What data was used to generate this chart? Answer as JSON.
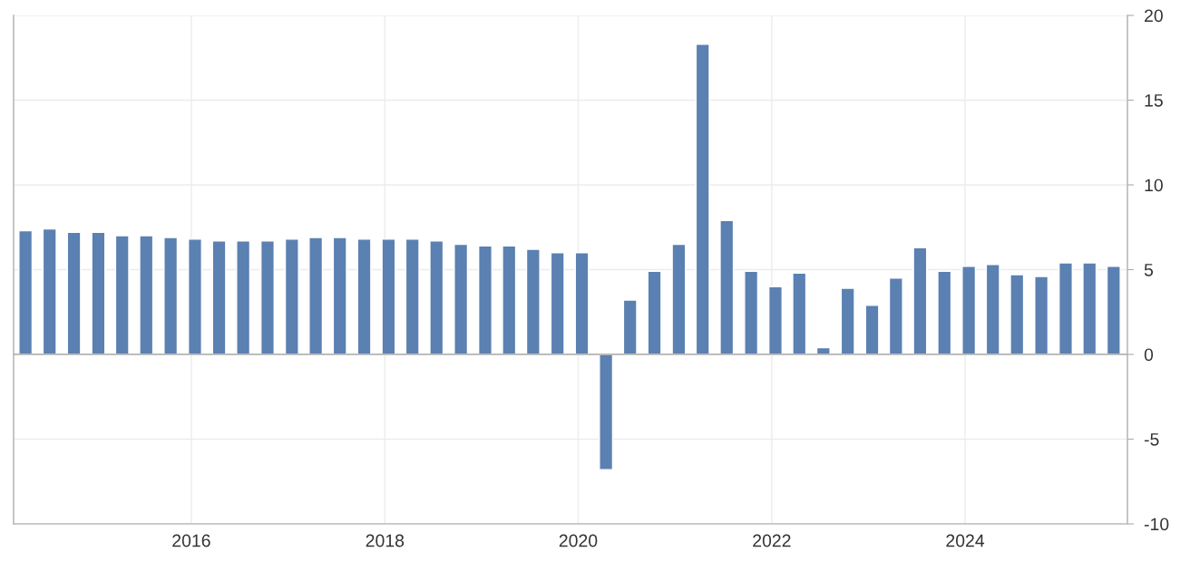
{
  "chart_data": {
    "type": "bar",
    "x": [
      "2014-04-15",
      "2014-07-15",
      "2014-10-15",
      "2015-01-15",
      "2015-04-15",
      "2015-07-15",
      "2015-10-15",
      "2016-01-15",
      "2016-04-15",
      "2016-07-15",
      "2016-10-15",
      "2017-01-15",
      "2017-04-15",
      "2017-07-15",
      "2017-10-15",
      "2018-01-15",
      "2018-04-15",
      "2018-07-15",
      "2018-10-15",
      "2019-01-15",
      "2019-04-15",
      "2019-07-15",
      "2019-10-15",
      "2020-01-15",
      "2020-04-15",
      "2020-07-15",
      "2020-10-15",
      "2021-01-15",
      "2021-04-15",
      "2021-07-15",
      "2021-10-15",
      "2022-01-15",
      "2022-04-15",
      "2022-07-15",
      "2022-10-15",
      "2023-01-15",
      "2023-04-15",
      "2023-07-15",
      "2023-10-15",
      "2024-01-15",
      "2024-04-15",
      "2024-07-15",
      "2024-10-15",
      "2025-01-15",
      "2025-04-15",
      "2025-07-15"
    ],
    "series": [
      {
        "color": "#5b80b2",
        "values": [
          7.3,
          7.4,
          7.2,
          7.2,
          7.0,
          7.0,
          6.9,
          6.8,
          6.7,
          6.7,
          6.7,
          6.8,
          6.9,
          6.9,
          6.8,
          6.8,
          6.8,
          6.7,
          6.5,
          6.4,
          6.4,
          6.2,
          6.0,
          6.0,
          -6.8,
          3.2,
          4.9,
          6.5,
          18.3,
          7.9,
          4.9,
          4.0,
          4.8,
          0.4,
          3.9,
          2.9,
          4.5,
          6.3,
          4.9,
          5.2,
          5.3,
          4.7,
          4.6,
          5.4,
          5.4,
          5.2
        ]
      }
    ],
    "xlim": [
      "2014-03-01",
      "2025-09-05"
    ],
    "xticks": [
      "2016",
      "2018",
      "2020",
      "2022",
      "2024"
    ],
    "ylim": [
      -10,
      20
    ],
    "yticks": [
      -10,
      -5,
      0,
      5,
      10,
      15,
      20
    ],
    "grid": true,
    "legend": false
  }
}
